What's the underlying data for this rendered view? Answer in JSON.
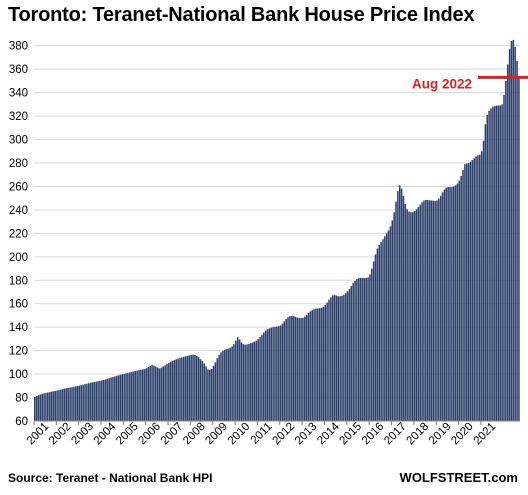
{
  "chart_data": {
    "type": "bar",
    "title": "Toronto: Teranet-National Bank House Price Index",
    "source": "Source: Teranet - National Bank HPI",
    "brand": "WOLFSTREET.com",
    "ylim": [
      60,
      390
    ],
    "yticks": [
      60,
      80,
      100,
      120,
      140,
      160,
      180,
      200,
      220,
      240,
      260,
      280,
      300,
      320,
      340,
      360,
      380
    ],
    "xticks": [
      "2001",
      "2002",
      "2003",
      "2004",
      "2005",
      "2006",
      "2007",
      "2008",
      "2009",
      "2010",
      "2011",
      "2012",
      "2013",
      "2014",
      "2015",
      "2016",
      "2017",
      "2018",
      "2019",
      "2020",
      "2021"
    ],
    "grid": true,
    "bar_color": "#2b3f6b",
    "annotation": {
      "label": "Aug 2022",
      "value": 353,
      "color": "#dd1f26"
    },
    "start": "2001-01",
    "values": [
      80.5,
      81.3,
      82.0,
      82.6,
      83.2,
      83.6,
      84.0,
      84.3,
      84.6,
      85.0,
      85.3,
      85.6,
      86.0,
      86.4,
      86.8,
      87.2,
      87.6,
      88.0,
      88.3,
      88.6,
      88.9,
      89.2,
      89.5,
      89.8,
      90.2,
      90.6,
      91.0,
      91.4,
      91.8,
      92.2,
      92.6,
      93.0,
      93.3,
      93.6,
      93.9,
      94.2,
      94.6,
      95.0,
      95.5,
      96.0,
      96.5,
      97.0,
      97.5,
      98.0,
      98.5,
      99.0,
      99.4,
      99.8,
      100.2,
      100.6,
      101.0,
      101.4,
      101.8,
      102.2,
      102.6,
      103.0,
      103.4,
      103.8,
      104.0,
      104.2,
      105.0,
      106.0,
      107.0,
      107.8,
      107.2,
      106.4,
      105.6,
      104.8,
      105.5,
      106.5,
      107.5,
      108.5,
      109.5,
      110.5,
      111.3,
      112.0,
      112.6,
      113.2,
      113.7,
      114.2,
      114.7,
      115.1,
      115.5,
      116.0,
      116.3,
      116.6,
      116.4,
      115.6,
      114.3,
      112.8,
      111.2,
      109.0,
      106.5,
      104.0,
      103.5,
      104.5,
      107.0,
      110.0,
      113.5,
      116.5,
      118.5,
      119.8,
      120.6,
      121.2,
      121.8,
      122.5,
      123.5,
      125.5,
      128.5,
      131.5,
      129.5,
      127.0,
      125.5,
      125.0,
      125.3,
      125.8,
      126.4,
      127.0,
      127.7,
      128.5,
      129.8,
      131.5,
      133.5,
      135.5,
      137.0,
      138.2,
      139.0,
      139.6,
      140.0,
      140.3,
      140.5,
      140.8,
      141.5,
      143.0,
      145.0,
      147.0,
      148.5,
      149.3,
      149.6,
      149.4,
      148.8,
      148.2,
      147.8,
      147.7,
      148.0,
      149.0,
      150.5,
      152.0,
      153.5,
      154.5,
      155.3,
      155.8,
      156.0,
      156.2,
      156.6,
      157.4,
      159.0,
      161.0,
      163.5,
      165.5,
      167.0,
      167.4,
      167.0,
      166.4,
      166.4,
      166.8,
      167.6,
      169.0,
      170.5,
      172.5,
      175.0,
      177.5,
      179.5,
      181.0,
      181.8,
      182.0,
      182.0,
      182.0,
      182.0,
      182.5,
      185.0,
      190.0,
      196.0,
      202.0,
      207.0,
      210.0,
      212.5,
      215.0,
      217.5,
      220.0,
      222.5,
      226.0,
      231.0,
      238.0,
      247.0,
      256.0,
      261.0,
      258.0,
      252.0,
      245.0,
      240.5,
      238.5,
      238.0,
      238.0,
      239.0,
      240.5,
      242.5,
      244.5,
      246.5,
      248.0,
      248.5,
      248.5,
      248.2,
      248.0,
      247.8,
      247.6,
      248.0,
      249.5,
      252.0,
      255.0,
      257.5,
      259.0,
      259.5,
      259.5,
      259.5,
      260.0,
      261.0,
      262.5,
      265.0,
      269.0,
      274.0,
      279.0,
      279.5,
      280.0,
      281.0,
      282.5,
      284.0,
      285.5,
      286.5,
      287.0,
      290.0,
      299.0,
      313.0,
      321.0,
      324.5,
      326.5,
      328.0,
      328.5,
      329.0,
      329.0,
      329.0,
      330.0,
      338.0,
      350.0,
      364.0,
      377.0,
      384.0,
      385.0,
      379.0,
      367.0,
      353.0
    ]
  }
}
